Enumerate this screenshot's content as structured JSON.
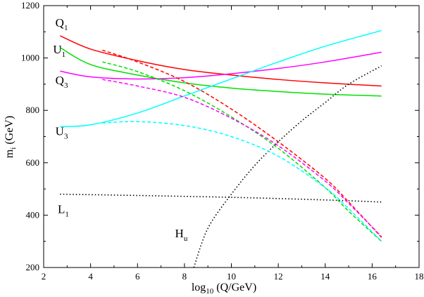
{
  "chart_data": {
    "type": "line",
    "xlabel": {
      "main": "log",
      "sub": "10",
      "rest": " (Q/GeV)"
    },
    "ylabel": {
      "main": "m",
      "sub": "i",
      "rest": " (GeV)"
    },
    "xlim": [
      2,
      18
    ],
    "ylim": [
      200,
      1200
    ],
    "xticks": [
      "2",
      "4",
      "6",
      "8",
      "10",
      "12",
      "14",
      "16",
      "18"
    ],
    "yticks": [
      "200",
      "400",
      "600",
      "800",
      "1000",
      "1200"
    ],
    "series": [
      {
        "name": "Q1",
        "label_main": "Q",
        "label_sub": "1",
        "color": "#ff0000",
        "dash": "solid",
        "x": [
          2.7,
          4,
          6,
          8,
          10,
          12,
          14,
          16.4
        ],
        "y": [
          1085,
          1034,
          990,
          956,
          935,
          918,
          905,
          893
        ]
      },
      {
        "name": "U1",
        "label_main": "U",
        "label_sub": "1",
        "color": "#00e000",
        "dash": "solid",
        "x": [
          2.7,
          4,
          6,
          8,
          10,
          12,
          14,
          16.4
        ],
        "y": [
          1040,
          975,
          935,
          905,
          885,
          872,
          862,
          855
        ]
      },
      {
        "name": "Q3",
        "label_main": "Q",
        "label_sub": "3",
        "color": "#ff00ff",
        "dash": "solid",
        "x": [
          2.7,
          4,
          6,
          8,
          10,
          12,
          14,
          16.4
        ],
        "y": [
          950,
          928,
          920,
          925,
          940,
          960,
          985,
          1022
        ]
      },
      {
        "name": "U3",
        "label_main": "U",
        "label_sub": "3",
        "color": "#00ffff",
        "dash": "solid",
        "x": [
          2.7,
          4,
          6,
          8,
          10,
          12,
          14,
          16.4
        ],
        "y": [
          738,
          745,
          790,
          855,
          920,
          985,
          1045,
          1105
        ]
      },
      {
        "name": "L1",
        "label_main": "L",
        "label_sub": "1",
        "color": "#000000",
        "dash": "dotted",
        "x": [
          2.7,
          6,
          10,
          14,
          16.4
        ],
        "y": [
          480,
          475,
          468,
          458,
          450
        ]
      },
      {
        "name": "Hu",
        "label_main": "H",
        "label_sub": "u",
        "color": "#000000",
        "dash": "dotted",
        "x": [
          8.4,
          9,
          10,
          11,
          12,
          13,
          14,
          15,
          16.4
        ],
        "y": [
          200,
          350,
          480,
          590,
          680,
          760,
          830,
          900,
          970
        ]
      },
      {
        "name": "Q1 (dashed)",
        "color": "#ff0000",
        "dash": "dashed",
        "x": [
          4.5,
          6,
          8,
          10,
          12,
          14,
          15,
          16.4
        ],
        "y": [
          1030,
          985,
          910,
          805,
          680,
          540,
          450,
          315
        ]
      },
      {
        "name": "U1 (dashed)",
        "color": "#00e000",
        "dash": "dashed",
        "x": [
          4.5,
          6,
          8,
          10,
          12,
          14,
          15,
          16.4
        ],
        "y": [
          985,
          948,
          875,
          775,
          655,
          505,
          415,
          300
        ]
      },
      {
        "name": "Q3 (dashed)",
        "color": "#ff00ff",
        "dash": "dashed",
        "x": [
          4.5,
          6,
          8,
          10,
          12,
          14,
          15,
          16.4
        ],
        "y": [
          918,
          893,
          850,
          770,
          665,
          530,
          445,
          318
        ]
      },
      {
        "name": "U3 (dashed)",
        "color": "#00ffff",
        "dash": "dashed",
        "x": [
          4.5,
          6,
          8,
          10,
          12,
          14,
          15,
          16.4
        ],
        "y": [
          752,
          757,
          742,
          700,
          625,
          505,
          425,
          300
        ]
      }
    ],
    "annotations": [
      {
        "series": "Q1",
        "x": 2.5,
        "y": 1120
      },
      {
        "series": "U1",
        "x": 2.4,
        "y": 1018
      },
      {
        "series": "Q3",
        "x": 2.5,
        "y": 900
      },
      {
        "series": "U3",
        "x": 2.5,
        "y": 705
      },
      {
        "series": "L1",
        "x": 2.6,
        "y": 408
      },
      {
        "series": "Hu",
        "x": 7.6,
        "y": 315
      }
    ]
  }
}
